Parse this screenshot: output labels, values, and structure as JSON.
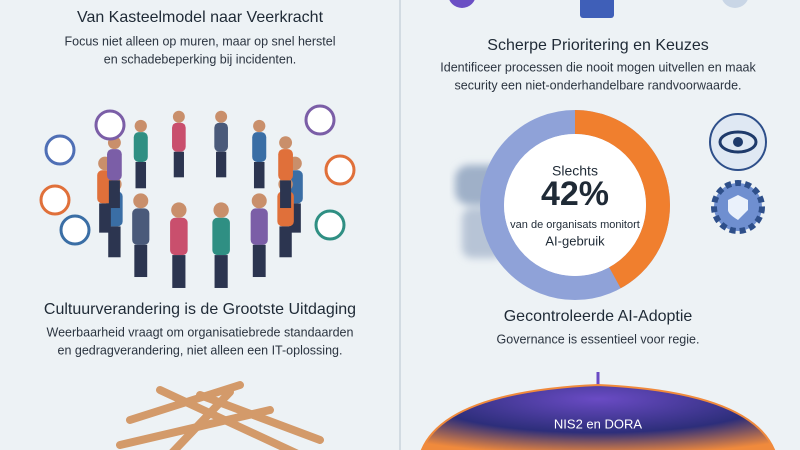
{
  "left": {
    "section1": {
      "title": "Van Kasteelmodel naar Veerkracht",
      "lines": [
        "Focus niet alleen op muren, maar op snel herstel",
        "en schadebeperking bij incidenten."
      ]
    },
    "section2": {
      "title": "Cultuurverandering is de Grootste Uitdaging",
      "lines": [
        "Weerbaarheid vraagt om organisatiebrede standaarden",
        "en gedragverandering, niet alleen een IT-oplossing."
      ]
    }
  },
  "right": {
    "section1": {
      "title": "Scherpe Prioritering en Keuzes",
      "lines": [
        "Identificeer processen die nooit mogen uitvellen en maak",
        "security een niet-onderhandelbare randvoorwaarde."
      ]
    },
    "stat": {
      "intro": "Slechts",
      "value": 42,
      "label": "42%",
      "lines": [
        "van de organisats monitort",
        "AI-gebruik"
      ]
    },
    "section2": {
      "title": "Gecontroleerde AI-Adoptie",
      "lines": [
        "Governance is essentieel voor regie."
      ]
    },
    "umbrella": {
      "label": "NIS2 en DORA"
    }
  }
}
